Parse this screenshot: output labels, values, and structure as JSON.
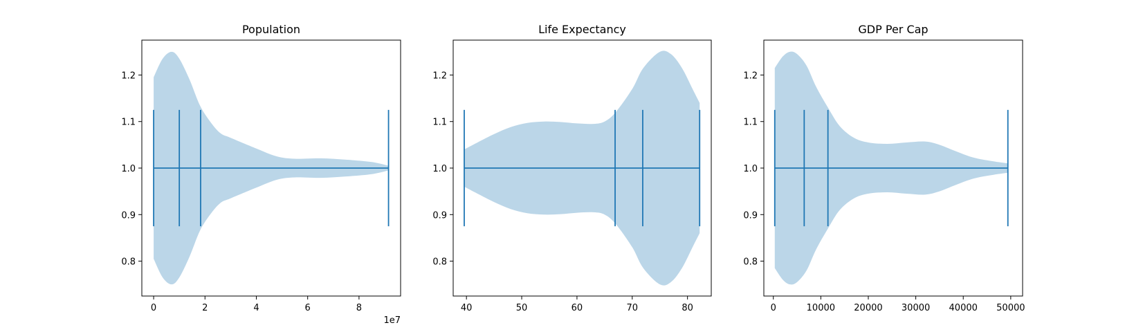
{
  "chart_data": [
    {
      "type": "violin",
      "title": "Population",
      "xlim": [
        -4600000,
        96200000
      ],
      "ylim": [
        0.725,
        1.275
      ],
      "xticks": [
        0,
        20000000,
        40000000,
        60000000,
        80000000
      ],
      "xtick_labels": [
        "0",
        "2",
        "4",
        "6",
        "8"
      ],
      "offset_label": "1e7",
      "yticks": [
        0.8,
        0.9,
        1.0,
        1.1,
        1.2
      ],
      "ytick_labels": [
        "0.8",
        "0.9",
        "1.0",
        "1.1",
        "1.2"
      ],
      "position": 1.0,
      "min": 0,
      "max": 91500000,
      "quantiles": [
        10000000,
        18300000
      ],
      "density_halfwidth": [
        [
          0,
          0.195
        ],
        [
          3500000,
          0.235
        ],
        [
          7000000,
          0.25
        ],
        [
          10000000,
          0.235
        ],
        [
          14000000,
          0.19
        ],
        [
          18000000,
          0.135
        ],
        [
          22000000,
          0.1
        ],
        [
          26000000,
          0.075
        ],
        [
          30000000,
          0.065
        ],
        [
          40000000,
          0.042
        ],
        [
          48000000,
          0.025
        ],
        [
          55000000,
          0.02
        ],
        [
          65000000,
          0.021
        ],
        [
          75000000,
          0.018
        ],
        [
          85000000,
          0.013
        ],
        [
          91500000,
          0.005
        ]
      ]
    },
    {
      "type": "violin",
      "title": "Life Expectancy",
      "xlim": [
        37.6,
        84.3
      ],
      "ylim": [
        0.725,
        1.275
      ],
      "xticks": [
        40,
        50,
        60,
        70,
        80
      ],
      "xtick_labels": [
        "40",
        "50",
        "60",
        "70",
        "80"
      ],
      "yticks": [
        0.8,
        0.9,
        1.0,
        1.1,
        1.2
      ],
      "ytick_labels": [
        "0.8",
        "0.9",
        "1.0",
        "1.1",
        "1.2"
      ],
      "position": 1.0,
      "min": 39.6,
      "max": 82.2,
      "quantiles": [
        66.9,
        71.9
      ],
      "density_halfwidth": [
        [
          39.6,
          0.04
        ],
        [
          42,
          0.055
        ],
        [
          45,
          0.073
        ],
        [
          48,
          0.088
        ],
        [
          51,
          0.097
        ],
        [
          54,
          0.1
        ],
        [
          57,
          0.099
        ],
        [
          60,
          0.096
        ],
        [
          63,
          0.095
        ],
        [
          65,
          0.1
        ],
        [
          67,
          0.12
        ],
        [
          70,
          0.17
        ],
        [
          72,
          0.215
        ],
        [
          75,
          0.25
        ],
        [
          77,
          0.245
        ],
        [
          79,
          0.215
        ],
        [
          81,
          0.168
        ],
        [
          82.2,
          0.14
        ]
      ]
    },
    {
      "type": "violin",
      "title": "GDP Per Cap",
      "xlim": [
        -2000,
        52500
      ],
      "ylim": [
        0.725,
        1.275
      ],
      "xticks": [
        0,
        10000,
        20000,
        30000,
        40000,
        50000
      ],
      "xtick_labels": [
        "0",
        "10000",
        "20000",
        "30000",
        "40000",
        "50000"
      ],
      "yticks": [
        0.8,
        0.9,
        1.0,
        1.1,
        1.2
      ],
      "ytick_labels": [
        "0.8",
        "0.9",
        "1.0",
        "1.1",
        "1.2"
      ],
      "position": 1.0,
      "min": 300,
      "max": 49400,
      "quantiles": [
        6500,
        11500
      ],
      "density_halfwidth": [
        [
          300,
          0.215
        ],
        [
          2000,
          0.24
        ],
        [
          3500,
          0.25
        ],
        [
          5000,
          0.245
        ],
        [
          7000,
          0.22
        ],
        [
          9000,
          0.175
        ],
        [
          11500,
          0.13
        ],
        [
          14000,
          0.09
        ],
        [
          17000,
          0.065
        ],
        [
          20000,
          0.055
        ],
        [
          24000,
          0.052
        ],
        [
          28000,
          0.055
        ],
        [
          32000,
          0.057
        ],
        [
          35000,
          0.05
        ],
        [
          38000,
          0.038
        ],
        [
          42000,
          0.023
        ],
        [
          46000,
          0.015
        ],
        [
          49400,
          0.01
        ]
      ]
    }
  ],
  "colors": {
    "body": "#1f77b4",
    "body_opacity": 0.3,
    "lines": "#1f77b4",
    "axes": "#000000"
  }
}
